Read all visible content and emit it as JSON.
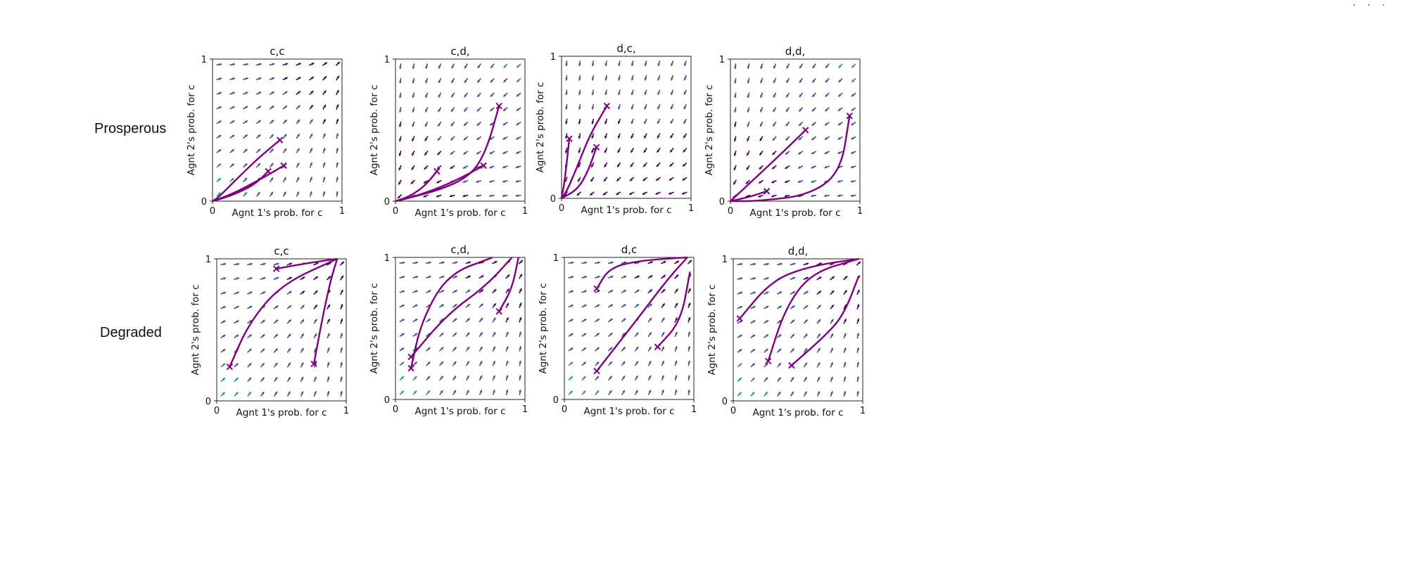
{
  "row_labels": [
    "Prosperous",
    "Degraded"
  ],
  "corner_marker": "· · ·",
  "chart_data": [
    {
      "type": "quiver",
      "row": 0,
      "col": 0,
      "title": "c,c",
      "xlabel": "Agnt 1's prob. for c",
      "ylabel": "Agnt 2's prob. for c",
      "xlim": [
        0,
        1
      ],
      "ylim": [
        0,
        1
      ],
      "xticks": [
        "0",
        "1"
      ],
      "yticks": [
        "0",
        "1"
      ],
      "field": "toward_corner_ne",
      "trajectories": [
        [
          [
            0.52,
            0.43
          ],
          [
            0.35,
            0.3
          ],
          [
            0.18,
            0.15
          ],
          [
            0.05,
            0.03
          ],
          [
            0.0,
            0.0
          ]
        ],
        [
          [
            0.43,
            0.21
          ],
          [
            0.33,
            0.12
          ],
          [
            0.2,
            0.06
          ],
          [
            0.08,
            0.02
          ],
          [
            0.0,
            0.0
          ]
        ],
        [
          [
            0.55,
            0.25
          ],
          [
            0.42,
            0.18
          ],
          [
            0.3,
            0.12
          ],
          [
            0.15,
            0.05
          ],
          [
            0.0,
            0.0
          ]
        ]
      ]
    },
    {
      "type": "quiver",
      "row": 0,
      "col": 1,
      "title": "c,d,",
      "xlabel": "Agnt 1's prob. for c",
      "ylabel": "Agnt 2's prob. for c",
      "xlim": [
        0,
        1
      ],
      "ylim": [
        0,
        1
      ],
      "xticks": [
        "0",
        "1"
      ],
      "yticks": [
        "0",
        "1"
      ],
      "field": "toward_corner_sw",
      "trajectories": [
        [
          [
            0.8,
            0.67
          ],
          [
            0.7,
            0.35
          ],
          [
            0.58,
            0.18
          ],
          [
            0.35,
            0.08
          ],
          [
            0.0,
            0.0
          ]
        ],
        [
          [
            0.32,
            0.21
          ],
          [
            0.22,
            0.1
          ],
          [
            0.1,
            0.03
          ],
          [
            0.0,
            0.0
          ]
        ],
        [
          [
            0.68,
            0.25
          ],
          [
            0.5,
            0.16
          ],
          [
            0.3,
            0.08
          ],
          [
            0.1,
            0.02
          ],
          [
            0.0,
            0.0
          ]
        ]
      ]
    },
    {
      "type": "quiver",
      "row": 0,
      "col": 2,
      "title": "d,c,",
      "xlabel": "Agnt 1's prob. for c",
      "ylabel": "Agnt 2's prob. for c",
      "xlim": [
        0,
        1
      ],
      "ylim": [
        0,
        1
      ],
      "xticks": [
        "0",
        "1"
      ],
      "yticks": [
        "0",
        "1"
      ],
      "field": "toward_bottom_left",
      "trajectories": [
        [
          [
            0.35,
            0.65
          ],
          [
            0.22,
            0.45
          ],
          [
            0.12,
            0.22
          ],
          [
            0.04,
            0.05
          ],
          [
            0.0,
            0.0
          ]
        ],
        [
          [
            0.06,
            0.42
          ],
          [
            0.04,
            0.25
          ],
          [
            0.02,
            0.1
          ],
          [
            0.0,
            0.0
          ]
        ],
        [
          [
            0.27,
            0.36
          ],
          [
            0.2,
            0.18
          ],
          [
            0.12,
            0.06
          ],
          [
            0.0,
            0.0
          ]
        ]
      ]
    },
    {
      "type": "quiver",
      "row": 0,
      "col": 3,
      "title": "d,d,",
      "xlabel": "Agnt 1's prob. for c",
      "ylabel": "Agnt 2's prob. for c",
      "xlim": [
        0,
        1
      ],
      "ylim": [
        0,
        1
      ],
      "xticks": [
        "0",
        "1"
      ],
      "yticks": [
        "0",
        "1"
      ],
      "field": "toward_corner_sw",
      "trajectories": [
        [
          [
            0.58,
            0.5
          ],
          [
            0.4,
            0.34
          ],
          [
            0.2,
            0.17
          ],
          [
            0.0,
            0.0
          ]
        ],
        [
          [
            0.28,
            0.07
          ],
          [
            0.15,
            0.03
          ],
          [
            0.0,
            0.0
          ]
        ],
        [
          [
            0.92,
            0.6
          ],
          [
            0.85,
            0.2
          ],
          [
            0.6,
            0.04
          ],
          [
            0.2,
            0.0
          ],
          [
            0.0,
            0.0
          ]
        ]
      ]
    },
    {
      "type": "quiver",
      "row": 1,
      "col": 0,
      "title": "c,c",
      "xlabel": "Agnt 1's prob. for c",
      "ylabel": "Agnt 2's prob. for c",
      "xlim": [
        0,
        1
      ],
      "ylim": [
        0,
        1
      ],
      "xticks": [
        "0",
        "1"
      ],
      "yticks": [
        "0",
        "1"
      ],
      "field": "toward_corner_ne",
      "trajectories": [
        [
          [
            0.46,
            0.93
          ],
          [
            0.7,
            0.97
          ],
          [
            0.93,
            1.0
          ]
        ],
        [
          [
            0.1,
            0.24
          ],
          [
            0.25,
            0.55
          ],
          [
            0.5,
            0.82
          ],
          [
            0.93,
            1.0
          ]
        ],
        [
          [
            0.75,
            0.26
          ],
          [
            0.82,
            0.6
          ],
          [
            0.88,
            0.85
          ],
          [
            0.93,
            1.0
          ]
        ]
      ]
    },
    {
      "type": "quiver",
      "row": 1,
      "col": 1,
      "title": "c,d,",
      "xlabel": "Agnt 1's prob. for c",
      "ylabel": "Agnt 2's prob. for c",
      "xlim": [
        0,
        1
      ],
      "ylim": [
        0,
        1
      ],
      "xticks": [
        "0",
        "1"
      ],
      "yticks": [
        "0",
        "1"
      ],
      "field": "toward_corner_ne",
      "trajectories": [
        [
          [
            0.12,
            0.22
          ],
          [
            0.2,
            0.55
          ],
          [
            0.4,
            0.88
          ],
          [
            0.75,
            1.0
          ]
        ],
        [
          [
            0.12,
            0.3
          ],
          [
            0.4,
            0.6
          ],
          [
            0.7,
            0.8
          ],
          [
            0.9,
            1.0
          ]
        ],
        [
          [
            0.8,
            0.62
          ],
          [
            0.9,
            0.78
          ],
          [
            0.95,
            1.0
          ]
        ]
      ]
    },
    {
      "type": "quiver",
      "row": 1,
      "col": 2,
      "title": "d,c",
      "xlabel": "Agnt 1's prob. for c",
      "ylabel": "Agnt 2's prob. for c",
      "xlim": [
        0,
        1
      ],
      "ylim": [
        0,
        1
      ],
      "xticks": [
        "0",
        "1"
      ],
      "yticks": [
        "0",
        "1"
      ],
      "field": "toward_corner_ne",
      "trajectories": [
        [
          [
            0.25,
            0.78
          ],
          [
            0.35,
            0.93
          ],
          [
            0.6,
            0.98
          ],
          [
            0.95,
            1.0
          ]
        ],
        [
          [
            0.25,
            0.2
          ],
          [
            0.55,
            0.55
          ],
          [
            0.8,
            0.85
          ],
          [
            0.95,
            1.0
          ]
        ],
        [
          [
            0.72,
            0.37
          ],
          [
            0.9,
            0.55
          ],
          [
            0.97,
            0.9
          ]
        ]
      ]
    },
    {
      "type": "quiver",
      "row": 1,
      "col": 3,
      "title": "d,d,",
      "xlabel": "Agnt 1's prob. for c",
      "ylabel": "Agnt 2's prob. for c",
      "xlim": [
        0,
        1
      ],
      "ylim": [
        0,
        1
      ],
      "xticks": [
        "0",
        "1"
      ],
      "yticks": [
        "0",
        "1"
      ],
      "field": "toward_corner_ne",
      "trajectories": [
        [
          [
            0.05,
            0.58
          ],
          [
            0.3,
            0.85
          ],
          [
            0.6,
            0.95
          ],
          [
            0.97,
            1.0
          ]
        ],
        [
          [
            0.27,
            0.28
          ],
          [
            0.4,
            0.65
          ],
          [
            0.6,
            0.9
          ],
          [
            0.97,
            1.0
          ]
        ],
        [
          [
            0.45,
            0.25
          ],
          [
            0.7,
            0.45
          ],
          [
            0.85,
            0.6
          ],
          [
            0.97,
            0.88
          ]
        ]
      ]
    }
  ]
}
